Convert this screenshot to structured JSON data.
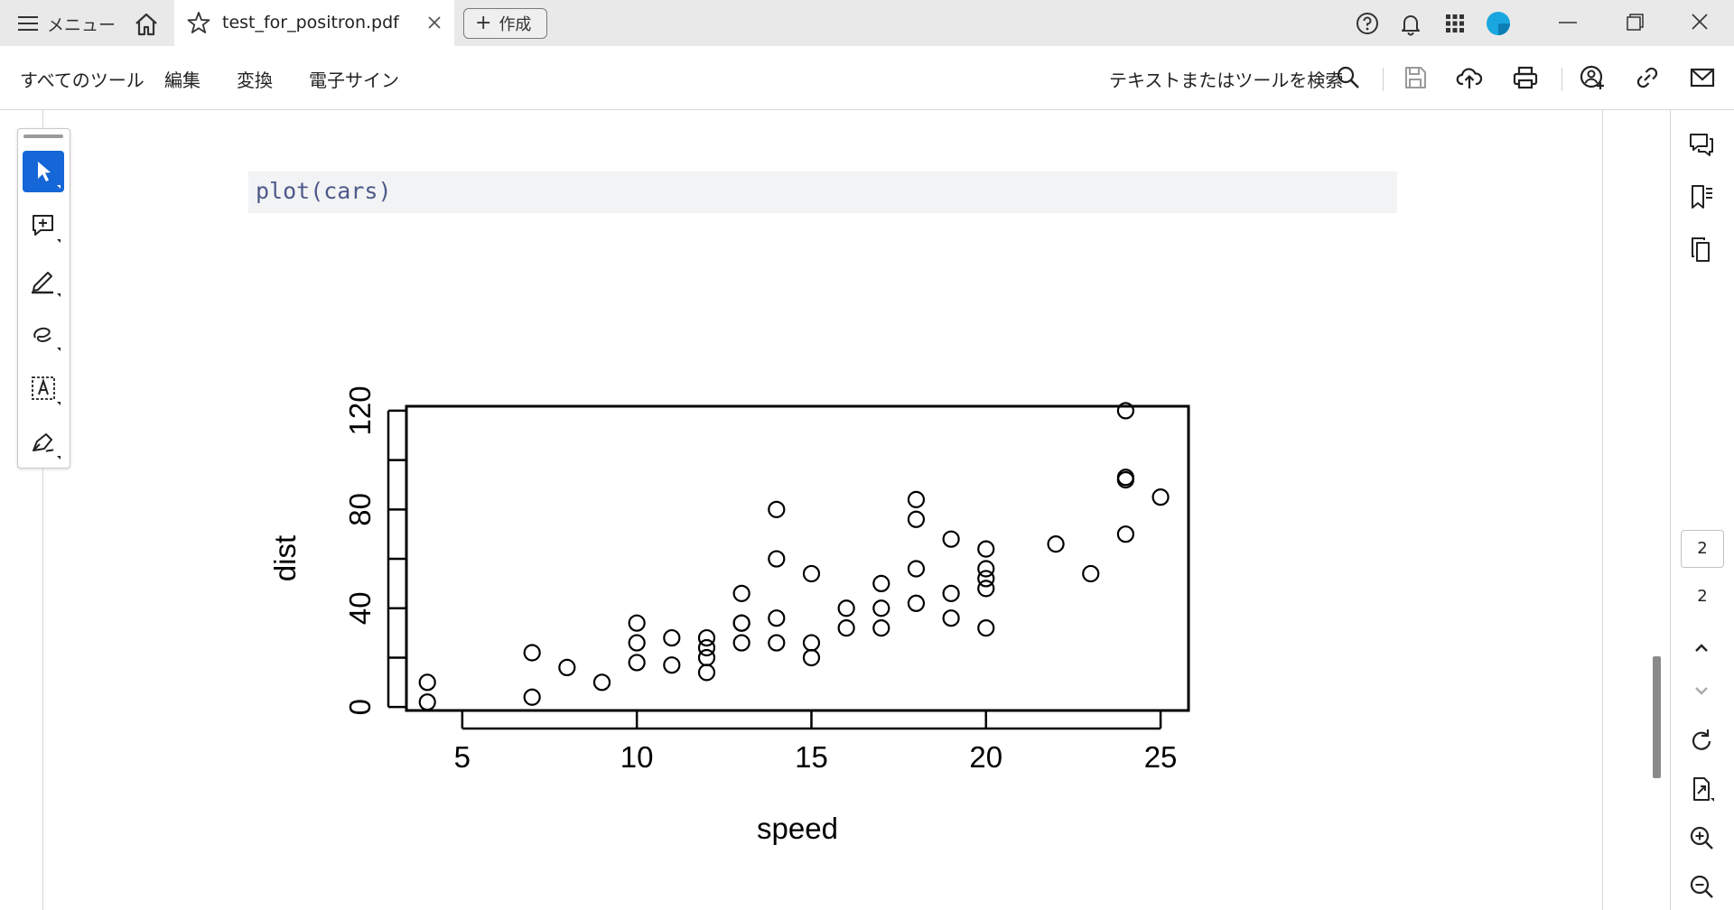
{
  "tabbar": {
    "menu_label": "メニュー",
    "tab_title": "test_for_positron.pdf",
    "create_label": "作成"
  },
  "toolbar": {
    "items": [
      "すべてのツール",
      "編集",
      "変換",
      "電子サイン"
    ],
    "search_label": "テキストまたはツールを検索"
  },
  "document": {
    "code": "plot(cars)"
  },
  "page_nav": {
    "current_page": "2",
    "total_pages": "2"
  },
  "colors": {
    "active_tool": "#1566d6",
    "code_text": "#4d5a8a",
    "avatar": "#1aa7e0"
  },
  "chart_data": {
    "type": "scatter",
    "xlabel": "speed",
    "ylabel": "dist",
    "xticks": [
      "5",
      "10",
      "15",
      "20",
      "25"
    ],
    "yticks": [
      "0",
      "40",
      "80",
      "120"
    ],
    "xlim": [
      3.4,
      25.8
    ],
    "ylim": [
      -1.4,
      121.8
    ],
    "grid": false,
    "marker": "open-circle",
    "points": [
      [
        4,
        2
      ],
      [
        4,
        10
      ],
      [
        7,
        4
      ],
      [
        7,
        22
      ],
      [
        8,
        16
      ],
      [
        9,
        10
      ],
      [
        10,
        18
      ],
      [
        10,
        26
      ],
      [
        10,
        34
      ],
      [
        11,
        17
      ],
      [
        11,
        28
      ],
      [
        12,
        14
      ],
      [
        12,
        20
      ],
      [
        12,
        24
      ],
      [
        12,
        28
      ],
      [
        13,
        26
      ],
      [
        13,
        34
      ],
      [
        13,
        34
      ],
      [
        13,
        46
      ],
      [
        14,
        26
      ],
      [
        14,
        36
      ],
      [
        14,
        60
      ],
      [
        14,
        80
      ],
      [
        15,
        20
      ],
      [
        15,
        26
      ],
      [
        15,
        54
      ],
      [
        16,
        32
      ],
      [
        16,
        40
      ],
      [
        17,
        32
      ],
      [
        17,
        40
      ],
      [
        17,
        50
      ],
      [
        18,
        42
      ],
      [
        18,
        56
      ],
      [
        18,
        76
      ],
      [
        18,
        84
      ],
      [
        19,
        36
      ],
      [
        19,
        46
      ],
      [
        19,
        68
      ],
      [
        20,
        32
      ],
      [
        20,
        48
      ],
      [
        20,
        52
      ],
      [
        20,
        56
      ],
      [
        20,
        64
      ],
      [
        22,
        66
      ],
      [
        23,
        54
      ],
      [
        24,
        70
      ],
      [
        24,
        92
      ],
      [
        24,
        93
      ],
      [
        24,
        120
      ],
      [
        25,
        85
      ]
    ]
  }
}
